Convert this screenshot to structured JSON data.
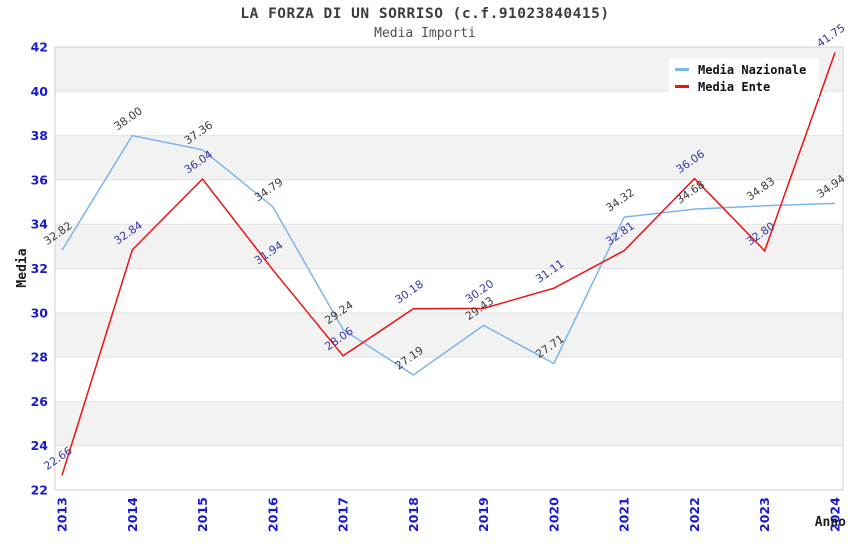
{
  "title": "LA FORZA DI UN SORRISO (c.f.91023840415)",
  "subtitle": "Media Importi",
  "legend": {
    "position": "top-right",
    "items": [
      {
        "label": "Media Nazionale",
        "color": "#7cb5ec"
      },
      {
        "label": "Media Ente",
        "color": "#ee1111"
      }
    ]
  },
  "axes": {
    "x_title": "Anno",
    "y_title": "Media",
    "y_ticks": [
      22,
      24,
      26,
      28,
      30,
      32,
      34,
      36,
      38,
      40,
      42
    ],
    "x_ticks": [
      2013,
      2014,
      2015,
      2016,
      2017,
      2018,
      2019,
      2020,
      2021,
      2022,
      2023,
      2024
    ]
  },
  "chart_data": {
    "type": "line",
    "title": "LA FORZA DI UN SORRISO (c.f.91023840415)",
    "subtitle": "Media Importi",
    "xlabel": "Anno",
    "ylabel": "Media",
    "x": [
      2013,
      2014,
      2015,
      2016,
      2017,
      2018,
      2019,
      2020,
      2021,
      2022,
      2023,
      2024
    ],
    "ylim": [
      22,
      42
    ],
    "ytick_step": 2,
    "grid": "horizontal gridlines with alternating gray bands",
    "legend_position": "top-right",
    "series": [
      {
        "name": "Media Nazionale",
        "color": "#7cb5ec",
        "label_color": "#3c3c3c",
        "values": [
          32.82,
          38.0,
          37.36,
          34.79,
          29.24,
          27.19,
          29.43,
          27.71,
          34.32,
          34.68,
          34.83,
          34.94
        ]
      },
      {
        "name": "Media Ente",
        "color": "#ee1111",
        "label_color": "#3636a8",
        "values": [
          22.66,
          32.84,
          36.04,
          31.94,
          28.06,
          30.18,
          30.2,
          31.11,
          32.81,
          36.06,
          32.8,
          41.75
        ]
      }
    ]
  },
  "colors": {
    "tick_label": "#1a1acd",
    "band_fill": "#f2f2f2",
    "gridline": "#e3e3e3",
    "plot_border": "#cfcfcf",
    "axis_title": "#1c1c1c"
  }
}
